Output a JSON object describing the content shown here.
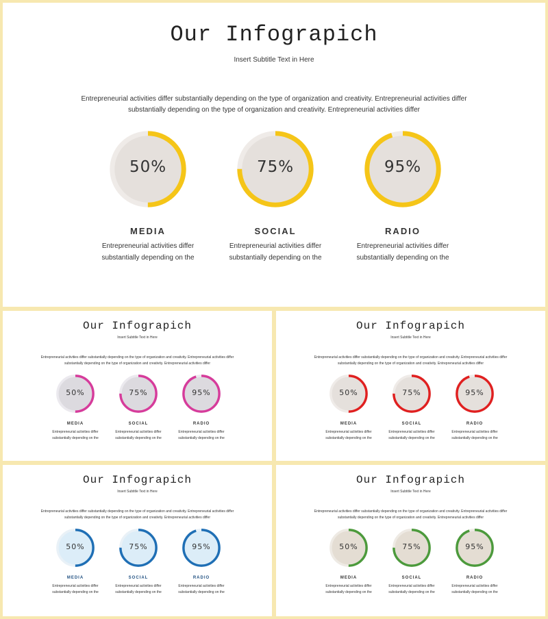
{
  "slides": [
    {
      "title": "Our Infograpich",
      "subtitle": "Insert Subtitle Text in Here",
      "intro": [
        "Entrepreneurial activities differ substantially depending on the type of organization and creativity. Entrepreneurial activities differ",
        "substantially depending on the type of organization and creativity. Entrepreneurial activities differ"
      ],
      "accent": "#f5c518",
      "ring_fill": "#e5e0dc",
      "track": "#efebe8",
      "label_color": "#333333",
      "items": [
        {
          "value": 50,
          "percent": "50%",
          "label": "MEDIA",
          "desc": [
            "Entrepreneurial activities differ",
            "substantially depending on the"
          ]
        },
        {
          "value": 75,
          "percent": "75%",
          "label": "SOCIAL",
          "desc": [
            "Entrepreneurial activities differ",
            "substantially depending on the"
          ]
        },
        {
          "value": 95,
          "percent": "95%",
          "label": "RADIO",
          "desc": [
            "Entrepreneurial activities differ",
            "substantially depending on the"
          ]
        }
      ]
    },
    {
      "title": "Our Infograpich",
      "subtitle": "Insert Subtitle Text in Here",
      "intro": [
        "Entrepreneurial activities differ substantially depending on the type of organization and creativity. Entrepreneurial activities differ",
        "substantially depending on the type of organization and creativity. Entrepreneurial activities differ"
      ],
      "accent": "#d63c9b",
      "ring_fill": "#dcdadf",
      "track": "#ebe9ee",
      "label_color": "#333333",
      "items": [
        {
          "value": 50,
          "percent": "50%",
          "label": "MEDIA",
          "desc": [
            "Entrepreneurial activities differ",
            "substantially depending on the"
          ]
        },
        {
          "value": 75,
          "percent": "75%",
          "label": "SOCIAL",
          "desc": [
            "Entrepreneurial activities differ",
            "substantially depending on the"
          ]
        },
        {
          "value": 95,
          "percent": "95%",
          "label": "RADIO",
          "desc": [
            "Entrepreneurial activities differ",
            "substantially depending on the"
          ]
        }
      ]
    },
    {
      "title": "Our Infograpich",
      "subtitle": "Insert Subtitle Text in Here",
      "intro": [
        "Entrepreneurial activities differ substantially depending on the type of organization and creativity. Entrepreneurial activities differ",
        "substantially depending on the type of organization and creativity. Entrepreneurial activities differ"
      ],
      "accent": "#e02020",
      "ring_fill": "#e5e0dc",
      "track": "#efebe8",
      "label_color": "#333333",
      "items": [
        {
          "value": 50,
          "percent": "50%",
          "label": "MEDIA",
          "desc": [
            "Entrepreneurial activities differ",
            "substantially depending on the"
          ]
        },
        {
          "value": 75,
          "percent": "75%",
          "label": "SOCIAL",
          "desc": [
            "Entrepreneurial activities differ",
            "substantially depending on the"
          ]
        },
        {
          "value": 95,
          "percent": "95%",
          "label": "RADIO",
          "desc": [
            "Entrepreneurial activities differ",
            "substantially depending on the"
          ]
        }
      ]
    },
    {
      "title": "Our Infograpich",
      "subtitle": "Insert Subtitle Text in Here",
      "intro": [
        "Entrepreneurial activities differ substantially depending on the type of organization and creativity. Entrepreneurial activities differ",
        "substantially depending on the type of organization and creativity. Entrepreneurial activities differ"
      ],
      "accent": "#1f6fb5",
      "ring_fill": "#dcedf8",
      "track": "#e9f1f7",
      "label_color": "#1f4f80",
      "items": [
        {
          "value": 50,
          "percent": "50%",
          "label": "MEDIA",
          "desc": [
            "Entrepreneurial activities differ",
            "substantially depending on the"
          ]
        },
        {
          "value": 75,
          "percent": "75%",
          "label": "SOCIAL",
          "desc": [
            "Entrepreneurial activities differ",
            "substantially depending on the"
          ]
        },
        {
          "value": 95,
          "percent": "95%",
          "label": "RADIO",
          "desc": [
            "Entrepreneurial activities differ",
            "substantially depending on the"
          ]
        }
      ]
    },
    {
      "title": "Our Infograpich",
      "subtitle": "Insert Subtitle Text in Here",
      "intro": [
        "Entrepreneurial activities differ substantially depending on the type of organization and creativity. Entrepreneurial activities differ",
        "substantially depending on the type of organization and creativity. Entrepreneurial activities differ"
      ],
      "accent": "#4c9a3c",
      "ring_fill": "#e4ddd3",
      "track": "#eeeae4",
      "label_color": "#333333",
      "items": [
        {
          "value": 50,
          "percent": "50%",
          "label": "MEDIA",
          "desc": [
            "Entrepreneurial activities differ",
            "substantially depending on the"
          ]
        },
        {
          "value": 75,
          "percent": "75%",
          "label": "SOCIAL",
          "desc": [
            "Entrepreneurial activities differ",
            "substantially depending on the"
          ]
        },
        {
          "value": 95,
          "percent": "95%",
          "label": "RADIO",
          "desc": [
            "Entrepreneurial activities differ",
            "substantially depending on the"
          ]
        }
      ]
    }
  ]
}
